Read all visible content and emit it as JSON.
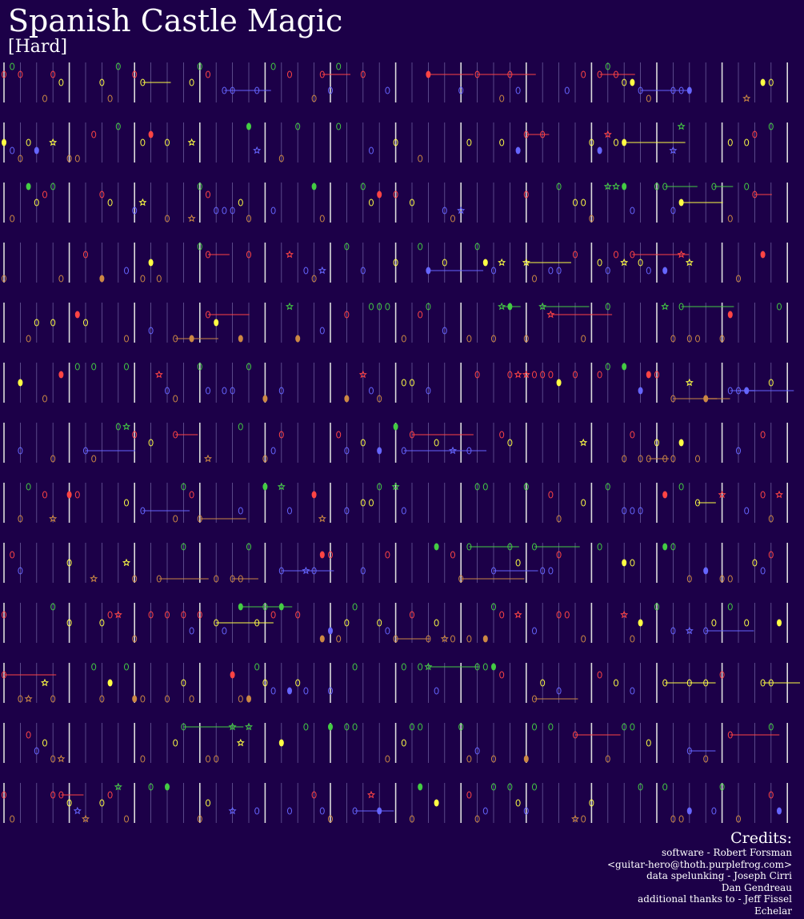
{
  "header": {
    "title": "Spanish Castle Magic",
    "difficulty": "[Hard]"
  },
  "credits": {
    "heading": "Credits:",
    "lines": [
      "software - Robert Forsman",
      "<guitar-hero@thoth.purplefrog.com>",
      "data spelunking - Joseph Cirri",
      "Dan Gendreau",
      "additional thanks to - Jeff Fissel",
      "Echelar"
    ]
  }
}
